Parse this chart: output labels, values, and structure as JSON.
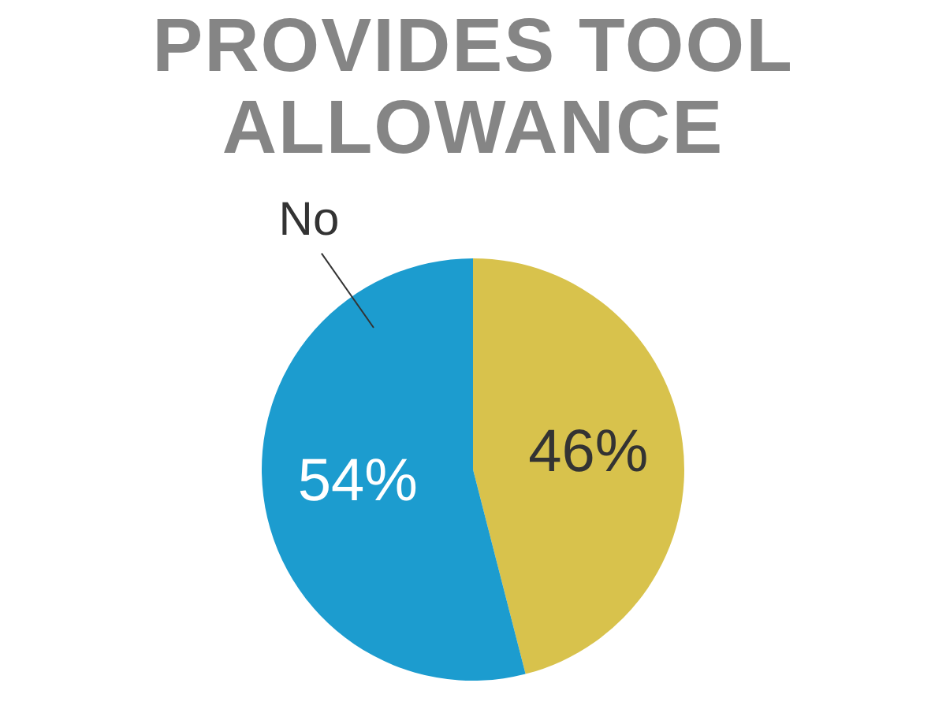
{
  "chart_data": {
    "type": "pie",
    "title": "PROVIDES TOOL ALLOWANCE",
    "categories": [
      null,
      "No"
    ],
    "values": [
      46,
      54
    ],
    "colors": [
      "#d8c24c",
      "#1c9ccf"
    ],
    "value_labels": [
      "46%",
      "54%"
    ],
    "legend": false
  }
}
